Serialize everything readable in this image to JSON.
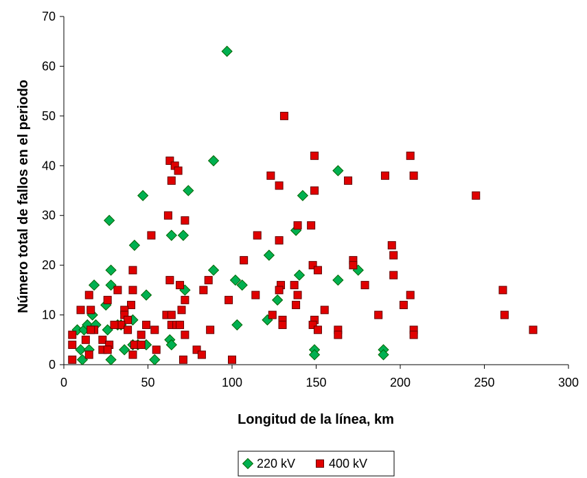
{
  "chart_data": {
    "type": "scatter",
    "title": "",
    "xlabel": "Longitud de la línea, km",
    "ylabel": "Número total de fallos en el periodo",
    "xlim": [
      0,
      300
    ],
    "ylim": [
      0,
      70
    ],
    "xticks": [
      0,
      50,
      100,
      150,
      200,
      250,
      300
    ],
    "yticks": [
      0,
      10,
      20,
      30,
      40,
      50,
      60,
      70
    ],
    "grid": false,
    "legend_position": "bottom-center",
    "series": [
      {
        "name": "220 kV",
        "marker": "diamond",
        "color": "#00b050",
        "edge_color": "#006400",
        "points": [
          [
            97,
            63
          ],
          [
            89,
            41
          ],
          [
            163,
            39
          ],
          [
            74,
            35
          ],
          [
            47,
            34
          ],
          [
            142,
            34
          ],
          [
            27,
            29
          ],
          [
            64,
            26
          ],
          [
            71,
            26
          ],
          [
            138,
            27
          ],
          [
            42,
            24
          ],
          [
            122,
            22
          ],
          [
            140,
            18
          ],
          [
            175,
            19
          ],
          [
            28,
            19
          ],
          [
            89,
            19
          ],
          [
            18,
            16
          ],
          [
            28,
            16
          ],
          [
            102,
            17
          ],
          [
            106,
            16
          ],
          [
            163,
            17
          ],
          [
            72,
            15
          ],
          [
            25,
            12
          ],
          [
            127,
            13
          ],
          [
            49,
            14
          ],
          [
            8,
            7
          ],
          [
            12,
            7
          ],
          [
            14,
            8
          ],
          [
            17,
            10
          ],
          [
            19,
            8
          ],
          [
            32,
            8
          ],
          [
            34,
            8
          ],
          [
            41,
            9
          ],
          [
            10,
            3
          ],
          [
            11,
            1
          ],
          [
            15,
            3
          ],
          [
            26,
            7
          ],
          [
            28,
            1
          ],
          [
            36,
            3
          ],
          [
            41,
            4
          ],
          [
            44,
            4
          ],
          [
            49,
            4
          ],
          [
            54,
            1
          ],
          [
            63,
            5
          ],
          [
            64,
            4
          ],
          [
            103,
            8
          ],
          [
            121,
            9
          ],
          [
            149,
            3
          ],
          [
            149,
            2
          ],
          [
            190,
            3
          ],
          [
            190,
            2
          ]
        ]
      },
      {
        "name": "400 kV",
        "marker": "square",
        "color": "#e00000",
        "edge_color": "#600000",
        "points": [
          [
            131,
            50
          ],
          [
            63,
            41
          ],
          [
            66,
            40
          ],
          [
            68,
            39
          ],
          [
            149,
            42
          ],
          [
            206,
            42
          ],
          [
            123,
            38
          ],
          [
            191,
            38
          ],
          [
            208,
            38
          ],
          [
            64,
            37
          ],
          [
            169,
            37
          ],
          [
            128,
            36
          ],
          [
            149,
            35
          ],
          [
            245,
            34
          ],
          [
            62,
            30
          ],
          [
            72,
            29
          ],
          [
            139,
            28
          ],
          [
            147,
            28
          ],
          [
            52,
            26
          ],
          [
            115,
            26
          ],
          [
            128,
            25
          ],
          [
            195,
            24
          ],
          [
            196,
            22
          ],
          [
            107,
            21
          ],
          [
            148,
            20
          ],
          [
            172,
            21
          ],
          [
            172,
            20
          ],
          [
            151,
            19
          ],
          [
            41,
            19
          ],
          [
            196,
            18
          ],
          [
            63,
            17
          ],
          [
            86,
            17
          ],
          [
            69,
            16
          ],
          [
            129,
            16
          ],
          [
            137,
            16
          ],
          [
            179,
            16
          ],
          [
            32,
            15
          ],
          [
            41,
            15
          ],
          [
            83,
            15
          ],
          [
            128,
            15
          ],
          [
            261,
            15
          ],
          [
            114,
            14
          ],
          [
            15,
            14
          ],
          [
            139,
            14
          ],
          [
            206,
            14
          ],
          [
            26,
            13
          ],
          [
            72,
            13
          ],
          [
            98,
            13
          ],
          [
            40,
            12
          ],
          [
            138,
            12
          ],
          [
            202,
            12
          ],
          [
            10,
            11
          ],
          [
            16,
            11
          ],
          [
            36,
            11
          ],
          [
            70,
            11
          ],
          [
            155,
            11
          ],
          [
            36,
            10
          ],
          [
            61,
            10
          ],
          [
            64,
            10
          ],
          [
            124,
            10
          ],
          [
            187,
            10
          ],
          [
            262,
            10
          ],
          [
            38,
            9
          ],
          [
            130,
            9
          ],
          [
            149,
            9
          ],
          [
            34,
            8
          ],
          [
            49,
            8
          ],
          [
            64,
            8
          ],
          [
            67,
            8
          ],
          [
            69,
            8
          ],
          [
            130,
            8
          ],
          [
            148,
            8
          ],
          [
            5,
            6
          ],
          [
            30,
            8
          ],
          [
            18,
            7
          ],
          [
            38,
            7
          ],
          [
            54,
            7
          ],
          [
            87,
            7
          ],
          [
            151,
            7
          ],
          [
            163,
            7
          ],
          [
            208,
            7
          ],
          [
            279,
            7
          ],
          [
            16,
            7
          ],
          [
            46,
            6
          ],
          [
            72,
            6
          ],
          [
            163,
            6
          ],
          [
            208,
            6
          ],
          [
            5,
            4
          ],
          [
            13,
            5
          ],
          [
            23,
            5
          ],
          [
            27,
            4
          ],
          [
            42,
            4
          ],
          [
            46,
            4
          ],
          [
            23,
            3
          ],
          [
            26,
            3
          ],
          [
            55,
            3
          ],
          [
            79,
            3
          ],
          [
            15,
            2
          ],
          [
            41,
            2
          ],
          [
            82,
            2
          ],
          [
            5,
            1
          ],
          [
            71,
            1
          ],
          [
            100,
            1
          ]
        ]
      }
    ]
  }
}
